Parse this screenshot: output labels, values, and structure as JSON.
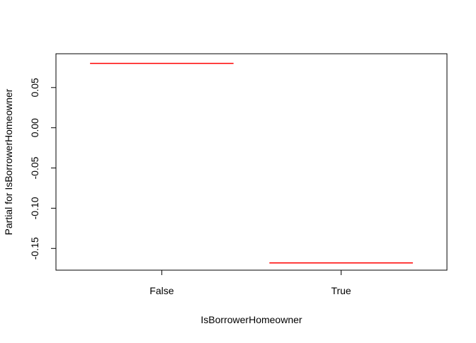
{
  "chart_data": {
    "type": "line",
    "title": "",
    "xlabel": "IsBorrowerHomeowner",
    "ylabel": "Partial for IsBorrowerHomeowner",
    "categories": [
      "False",
      "True"
    ],
    "values": [
      0.08,
      -0.168
    ],
    "ylim": [
      -0.177,
      0.092
    ],
    "yticks": [
      {
        "value": 0.05,
        "label": "0.05"
      },
      {
        "value": 0.0,
        "label": "0.00"
      },
      {
        "value": -0.05,
        "label": "-0.05"
      },
      {
        "value": -0.1,
        "label": "-0.10"
      },
      {
        "value": -0.15,
        "label": "-0.15"
      }
    ],
    "grid": false,
    "legend": "none",
    "colors": {
      "segment": "#ff0000",
      "axis": "#000000"
    }
  }
}
